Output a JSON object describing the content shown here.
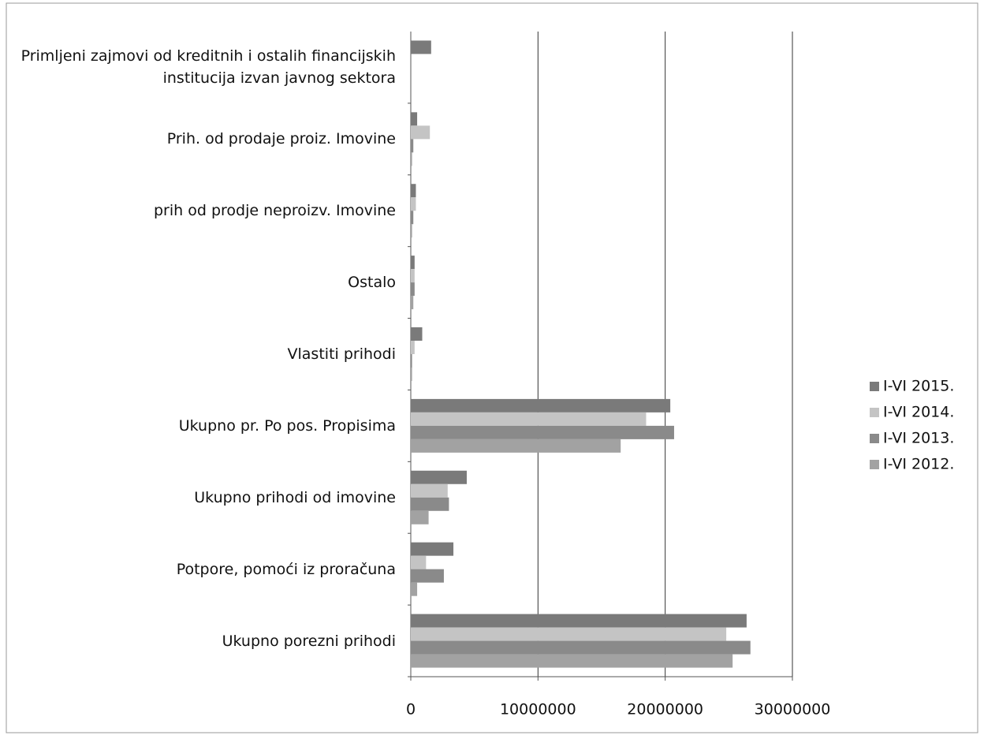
{
  "chart_data": {
    "type": "bar",
    "orientation": "horizontal",
    "categories": [
      "Ukupno porezni prihodi",
      "Potpore, pomoći iz proračuna",
      "Ukupno prihodi od imovine",
      "Ukupno pr. Po pos. Propisima",
      "Vlastiti prihodi",
      "Ostalo",
      "prih od prodje neproizv. Imovine",
      "Prih. od prodaje proiz. Imovine",
      "Primljeni zajmovi od kreditnih i ostalih financijskih institucija izvan javnog sektora"
    ],
    "series": [
      {
        "name": "I-VI 2015.",
        "color": "#7a7a7a",
        "values": [
          26400000,
          3350000,
          4400000,
          20400000,
          900000,
          300000,
          400000,
          500000,
          1600000
        ]
      },
      {
        "name": "I-VI 2014.",
        "color": "#c4c4c4",
        "values": [
          24800000,
          1200000,
          2900000,
          18500000,
          300000,
          300000,
          400000,
          1500000,
          0
        ]
      },
      {
        "name": "I-VI 2013.",
        "color": "#8a8a8a",
        "values": [
          26700000,
          2600000,
          3000000,
          20700000,
          100000,
          300000,
          200000,
          200000,
          0
        ]
      },
      {
        "name": "I-VI 2012.",
        "color": "#a2a2a2",
        "values": [
          25300000,
          500000,
          1400000,
          16500000,
          100000,
          200000,
          100000,
          100000,
          0
        ]
      }
    ],
    "xlim": [
      0,
      30000000
    ],
    "xticks": [
      0,
      10000000,
      20000000,
      30000000
    ],
    "grid": true,
    "legend": "right"
  }
}
